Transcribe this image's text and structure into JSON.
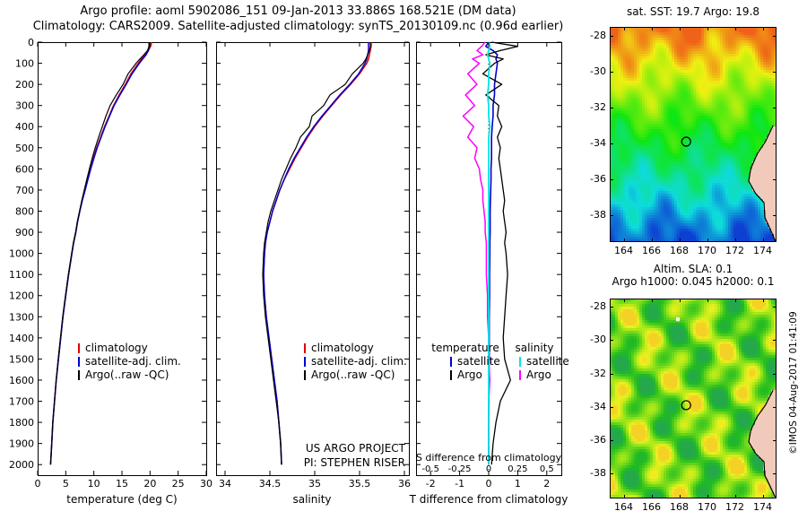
{
  "header": {
    "line1": "Argo profile: aoml 5902086_151 09-Jan-2013 33.886S 168.521E (DM data)",
    "line2": "Climatology: CARS2009. Satellite-adjusted climatology: synTS_20130109.nc (0.96d earlier)"
  },
  "credit": "©IMOS 04-Aug-2017 01:41:09",
  "colors": {
    "climatology": "#e00000",
    "satellite_adjusted": "#0000cc",
    "argo": "#000000",
    "satellite_salinity": "#00e5e5",
    "argo_salinity": "#ff00ff",
    "land": "#f2cabc"
  },
  "chart_data": [
    {
      "id": "temperature-profile",
      "type": "line",
      "xlabel": "temperature (deg C)",
      "xlim": [
        0,
        30
      ],
      "xticks": [
        0,
        5,
        10,
        15,
        20,
        25,
        30
      ],
      "ylim": [
        0,
        2050
      ],
      "ytick_step": 100,
      "show_ytick_labels": true,
      "legend_labels": [
        "climatology",
        "satellite-adj. clim.",
        "Argo(..raw -QC)"
      ],
      "depths": [
        0,
        20,
        40,
        60,
        80,
        100,
        150,
        200,
        250,
        300,
        350,
        400,
        450,
        500,
        550,
        600,
        650,
        700,
        750,
        800,
        850,
        900,
        950,
        1000,
        1100,
        1200,
        1300,
        1400,
        1500,
        1600,
        1700,
        1800,
        1900,
        2000
      ],
      "series": [
        {
          "name": "climatology",
          "color": "#e00000",
          "lw": 1.5,
          "values": [
            20.3,
            20.1,
            19.7,
            19.1,
            18.5,
            17.9,
            16.6,
            15.6,
            14.5,
            13.5,
            12.7,
            11.9,
            11.2,
            10.5,
            9.9,
            9.4,
            8.9,
            8.4,
            7.9,
            7.5,
            7.1,
            6.8,
            6.4,
            6.1,
            5.5,
            5.0,
            4.5,
            4.1,
            3.7,
            3.3,
            3.0,
            2.7,
            2.5,
            2.3
          ]
        },
        {
          "name": "satellite-adj. clim.",
          "color": "#0000cc",
          "lw": 1.5,
          "values": [
            19.9,
            19.85,
            19.7,
            19.3,
            18.7,
            18.1,
            16.8,
            15.75,
            14.65,
            13.6,
            12.8,
            12.0,
            11.3,
            10.6,
            10.0,
            9.45,
            8.95,
            8.45,
            7.95,
            7.5,
            7.1,
            6.8,
            6.4,
            6.1,
            5.5,
            5.0,
            4.5,
            4.1,
            3.7,
            3.3,
            3.0,
            2.7,
            2.5,
            2.3
          ]
        },
        {
          "name": "Argo(..raw -QC)",
          "color": "#000000",
          "lw": 1.2,
          "values": [
            19.8,
            19.8,
            19.55,
            18.9,
            18.2,
            17.5,
            16.1,
            15.2,
            14.0,
            12.9,
            12.15,
            11.5,
            10.85,
            10.25,
            9.7,
            9.2,
            8.75,
            8.3,
            7.85,
            7.45,
            7.05,
            6.75,
            6.35,
            6.05,
            5.45,
            4.95,
            4.45,
            4.05,
            3.65,
            3.3,
            3.0,
            2.7,
            2.5,
            2.3
          ]
        }
      ]
    },
    {
      "id": "salinity-profile",
      "type": "line",
      "xlabel": "salinity",
      "xlim": [
        33.9,
        36.05
      ],
      "xticks": [
        34,
        34.5,
        35,
        35.5,
        36
      ],
      "ylim": [
        0,
        2050
      ],
      "ytick_step": 100,
      "show_ytick_labels": false,
      "legend_labels": [
        "climatology",
        "satellite-adj. clim.",
        "Argo(..raw -QC)"
      ],
      "notes": [
        "US ARGO PROJECT",
        "PI: STEPHEN RISER"
      ],
      "depths": [
        0,
        20,
        40,
        60,
        80,
        100,
        150,
        200,
        250,
        300,
        350,
        400,
        450,
        500,
        550,
        600,
        650,
        700,
        750,
        800,
        850,
        900,
        950,
        1000,
        1100,
        1200,
        1300,
        1400,
        1500,
        1600,
        1700,
        1800,
        1900,
        2000
      ],
      "series": [
        {
          "name": "climatology",
          "color": "#e00000",
          "lw": 1.5,
          "values": [
            35.63,
            35.63,
            35.62,
            35.61,
            35.6,
            35.58,
            35.5,
            35.4,
            35.29,
            35.19,
            35.09,
            35.0,
            34.92,
            34.85,
            34.78,
            34.72,
            34.66,
            34.61,
            34.57,
            34.53,
            34.5,
            34.47,
            34.45,
            34.44,
            34.43,
            34.44,
            34.46,
            34.49,
            34.52,
            34.55,
            34.58,
            34.6,
            34.62,
            34.63
          ]
        },
        {
          "name": "satellite-adj. clim.",
          "color": "#0000cc",
          "lw": 1.5,
          "values": [
            35.6,
            35.6,
            35.6,
            35.59,
            35.58,
            35.56,
            35.49,
            35.39,
            35.28,
            35.18,
            35.08,
            34.99,
            34.91,
            34.84,
            34.77,
            34.71,
            34.66,
            34.61,
            34.57,
            34.53,
            34.5,
            34.47,
            34.45,
            34.44,
            34.43,
            34.44,
            34.46,
            34.49,
            34.52,
            34.55,
            34.58,
            34.6,
            34.62,
            34.63
          ]
        },
        {
          "name": "Argo(..raw -QC)",
          "color": "#000000",
          "lw": 1.2,
          "values": [
            35.62,
            35.62,
            35.61,
            35.59,
            35.57,
            35.54,
            35.42,
            35.34,
            35.17,
            35.1,
            34.97,
            34.94,
            34.84,
            34.79,
            34.73,
            34.68,
            34.63,
            34.59,
            34.55,
            34.51,
            34.48,
            34.46,
            34.44,
            34.43,
            34.42,
            34.43,
            34.45,
            34.48,
            34.51,
            34.54,
            34.57,
            34.6,
            34.62,
            34.63
          ]
        }
      ]
    },
    {
      "id": "difference-profile",
      "type": "line",
      "xlabel": "T difference from climatology",
      "xlabel2": "S difference from climatology",
      "xlim": [
        -2.5,
        2.5
      ],
      "xticks": [
        -2,
        -1,
        0,
        1,
        2
      ],
      "x2ticks": [
        -0.5,
        -0.25,
        0,
        0.25,
        0.5
      ],
      "x2_to_x_scale": 4,
      "zero_line": true,
      "ylim": [
        0,
        2050
      ],
      "ytick_step": 100,
      "show_ytick_labels": false,
      "legend_columns": [
        {
          "header": "temperature",
          "items": [
            {
              "label": "satellite",
              "color": "#0000cc"
            },
            {
              "label": "Argo",
              "color": "#000000"
            }
          ]
        },
        {
          "header": "salinity",
          "items": [
            {
              "label": "satellite",
              "color": "#00e5e5"
            },
            {
              "label": "Argo",
              "color": "#ff00ff"
            }
          ]
        }
      ],
      "depths": [
        0,
        20,
        40,
        60,
        80,
        100,
        150,
        200,
        250,
        300,
        350,
        400,
        450,
        500,
        550,
        600,
        650,
        700,
        750,
        800,
        850,
        900,
        950,
        1000,
        1100,
        1200,
        1300,
        1400,
        1500,
        1600,
        1700,
        1800,
        1900,
        2000
      ],
      "series": [
        {
          "name": "satellite T diff",
          "color": "#0000cc",
          "lw": 1.6,
          "values": [
            0.0,
            -0.1,
            0.15,
            0.3,
            0.25,
            0.3,
            0.25,
            0.2,
            0.2,
            0.15,
            0.15,
            0.12,
            0.1,
            0.1,
            0.1,
            0.08,
            0.08,
            0.07,
            0.06,
            0.05,
            0.05,
            0.05,
            0.04,
            0.04,
            0.03,
            0.03,
            0.02,
            0.02,
            0.02,
            0.01,
            0.01,
            0.0,
            0.0,
            0.0
          ]
        },
        {
          "name": "Argo T diff",
          "color": "#000000",
          "lw": 1.3,
          "values": [
            0.1,
            1.0,
            0.4,
            -0.1,
            0.5,
            0.2,
            -0.2,
            0.45,
            -0.1,
            0.35,
            0.3,
            0.45,
            0.3,
            0.4,
            0.35,
            0.4,
            0.45,
            0.5,
            0.55,
            0.5,
            0.55,
            0.6,
            0.55,
            0.6,
            0.65,
            0.6,
            0.55,
            0.5,
            0.55,
            0.75,
            0.4,
            0.25,
            0.15,
            0.1
          ]
        },
        {
          "name": "Argo S diff",
          "color": "#ff00ff",
          "lw": 1.5,
          "secondary_axis": true,
          "values": [
            -0.03,
            -0.06,
            -0.1,
            -0.05,
            -0.14,
            -0.08,
            -0.18,
            -0.1,
            -0.2,
            -0.12,
            -0.22,
            -0.13,
            -0.18,
            -0.1,
            -0.12,
            -0.08,
            -0.07,
            -0.05,
            -0.05,
            -0.04,
            -0.03,
            -0.03,
            -0.02,
            -0.02,
            -0.02,
            -0.01,
            -0.01,
            0.0,
            0.0,
            0.01,
            0.0,
            0.0,
            0.0,
            0.0
          ]
        },
        {
          "name": "satellite S diff",
          "color": "#00e5e5",
          "lw": 1.8,
          "secondary_axis": true,
          "values": [
            0.0,
            0.01,
            0.0,
            -0.01,
            0.0,
            0.01,
            0.0,
            0.0,
            -0.01,
            0.0,
            0.0,
            0.01,
            0.0,
            0.0,
            0.0,
            0.0,
            0.0,
            0.0,
            0.0,
            0.0,
            0.0,
            0.0,
            0.0,
            0.0,
            0.0,
            0.0,
            0.0,
            0.0,
            0.0,
            0.0,
            0.0,
            0.0,
            0.0,
            0.0
          ]
        }
      ]
    }
  ],
  "maps": {
    "top": {
      "title": "sat. SST: 19.7 Argo: 19.8",
      "xlim": [
        163,
        175
      ],
      "ylim": [
        -39.5,
        -27.5
      ],
      "xticks": [
        164,
        166,
        168,
        170,
        172,
        174
      ],
      "yticks": [
        -28,
        -30,
        -32,
        -34,
        -36,
        -38
      ],
      "marker": {
        "lon": 168.5,
        "lat": -33.9
      }
    },
    "bottom": {
      "title1": "Altim. SLA: 0.1",
      "title2": "Argo h1000: 0.045 h2000: 0.1",
      "xlim": [
        163,
        175
      ],
      "ylim": [
        -39.5,
        -27.5
      ],
      "xticks": [
        164,
        166,
        168,
        170,
        172,
        174
      ],
      "yticks": [
        -28,
        -30,
        -32,
        -34,
        -36,
        -38
      ],
      "marker": {
        "lon": 168.5,
        "lat": -33.9
      }
    }
  }
}
